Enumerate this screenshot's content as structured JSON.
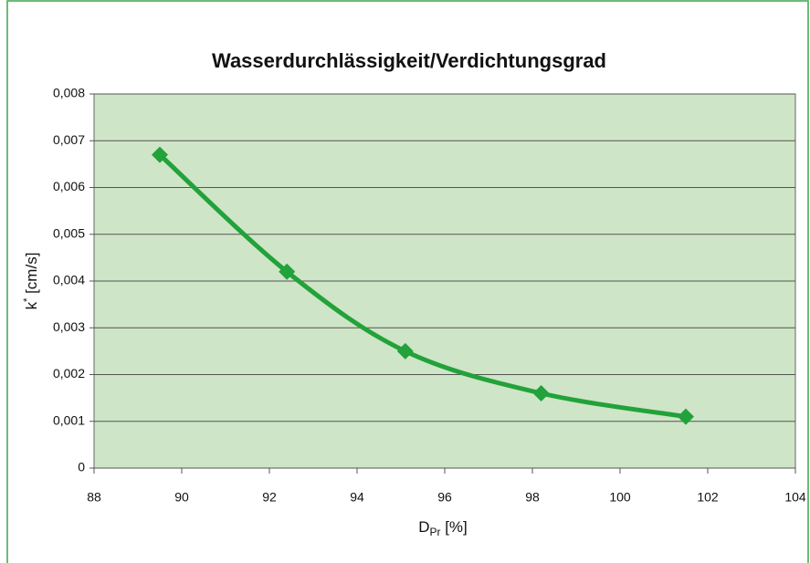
{
  "chart_data": {
    "type": "line",
    "title": "Wasserdurchlässigkeit/Verdichtungsgrad",
    "x_label": {
      "main": "D",
      "sub": "Pr",
      "rest": " [%]"
    },
    "y_label": {
      "main": "k",
      "sup": "*",
      "rest": " [cm/s]"
    },
    "x": [
      89.5,
      92.4,
      95.1,
      98.2,
      101.5
    ],
    "series": [
      {
        "color": "#22a23a",
        "values": [
          0.0067,
          0.0042,
          0.0025,
          0.0016,
          0.0011
        ]
      }
    ],
    "xlim": [
      88,
      104
    ],
    "xticks": [
      88,
      90,
      92,
      94,
      96,
      98,
      100,
      102,
      104
    ],
    "ylim": [
      0,
      0.008
    ],
    "yticks": [
      0,
      {
        "value": 0.001,
        "label": "0,001"
      },
      {
        "value": 0.002,
        "label": "0,002"
      },
      {
        "value": 0.003,
        "label": "0,003"
      },
      {
        "value": 0.004,
        "label": "0,004"
      },
      {
        "value": 0.005,
        "label": "0,005"
      },
      {
        "value": 0.006,
        "label": "0,006"
      },
      {
        "value": 0.007,
        "label": "0,007"
      },
      {
        "value": 0.008,
        "label": "0,008"
      }
    ],
    "grid": true,
    "smooth": true,
    "plot_background": "#cfe5c7"
  }
}
